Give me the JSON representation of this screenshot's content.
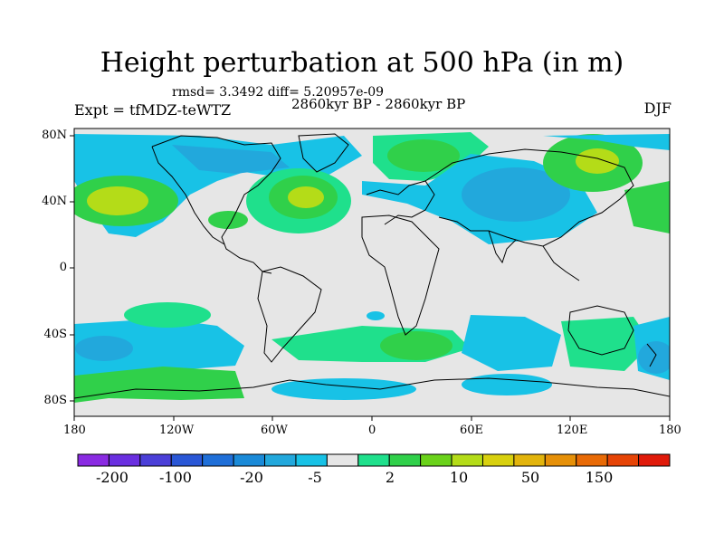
{
  "title": "Height perturbation at 500 hPa (in m)",
  "stats": "rmsd= 3.3492 diff= 5.20957e-09",
  "left_label": "Expt = tfMDZ-teWTZ",
  "center_label": "2860kyr BP - 2860kyr BP",
  "right_label": "DJF",
  "x_ticks": [
    "180",
    "120W",
    "60W",
    "0",
    "60E",
    "120E",
    "180"
  ],
  "y_ticks": [
    "80N",
    "40N",
    "0",
    "40S",
    "80S"
  ],
  "colorbar": {
    "colors": [
      "#8a2be2",
      "#6a2fe0",
      "#4b3fd8",
      "#2a57d6",
      "#1f6fd8",
      "#1a8ad8",
      "#22a8dc",
      "#18c2e6",
      "#e6e6e6",
      "#1fe08c",
      "#30d04a",
      "#6ad21a",
      "#b4dc18",
      "#d8d00e",
      "#e2b40c",
      "#e69008",
      "#e86a06",
      "#e64406",
      "#e01a0a"
    ],
    "labels": [
      "-200",
      "-100",
      "-20",
      "-5",
      "2",
      "10",
      "50",
      "150"
    ]
  },
  "palette": {
    "background": "#e6e6e6",
    "cyan": "#18c2e6",
    "light_blue": "#22a8dc",
    "teal_green": "#1fe08c",
    "green": "#30d04a",
    "yellow_green": "#b4dc18"
  }
}
